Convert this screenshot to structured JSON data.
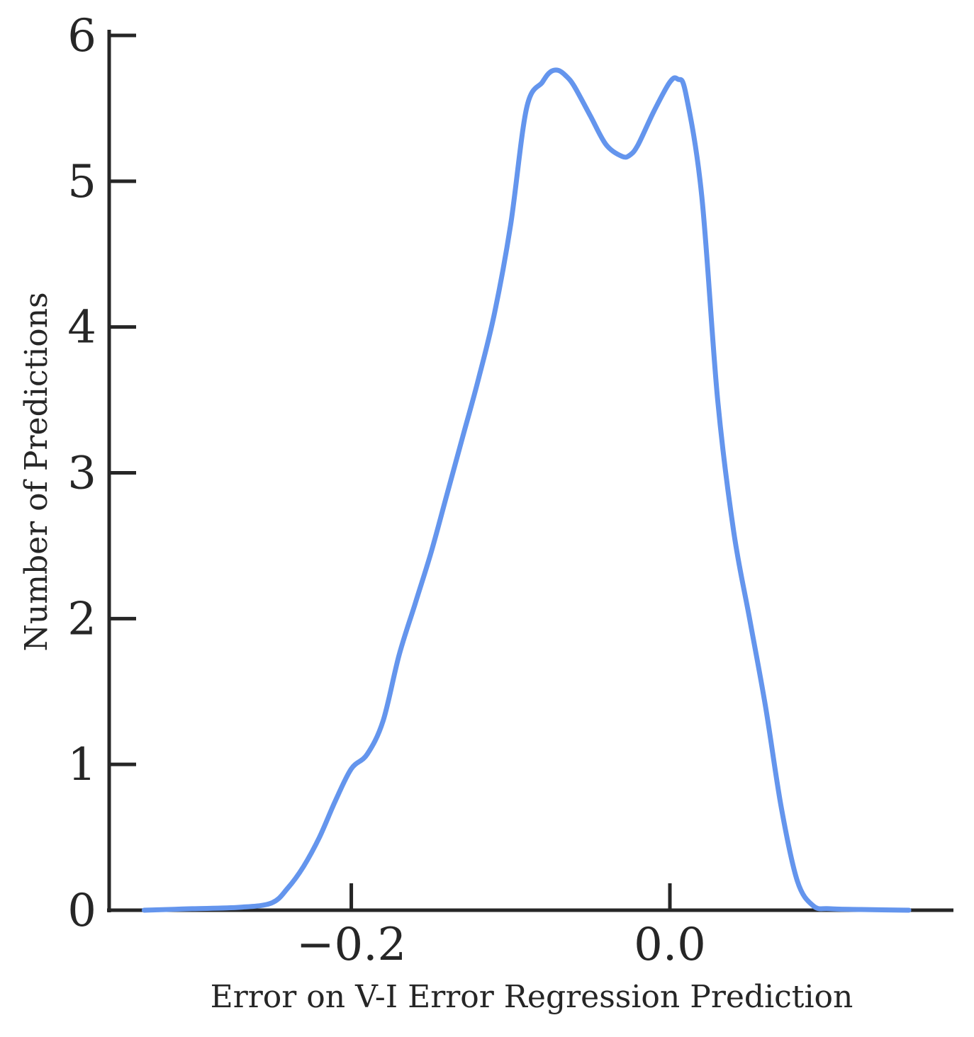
{
  "chart_data": {
    "type": "line",
    "title": "",
    "xlabel": "Error on V-I Error Regression Prediction",
    "ylabel": "Number of Predictions",
    "xlim": [
      -0.352,
      0.178
    ],
    "ylim": [
      0,
      6
    ],
    "xticks": [
      -0.2,
      0.0
    ],
    "xtick_labels": [
      "−0.2",
      "0.0"
    ],
    "yticks": [
      0,
      1,
      2,
      3,
      4,
      5,
      6
    ],
    "ytick_labels": [
      "0",
      "1",
      "2",
      "3",
      "4",
      "5",
      "6"
    ],
    "grid": false,
    "colors": {
      "series": "#6495ED",
      "axis": "#262626"
    },
    "series": [
      {
        "x": [
          -0.33,
          -0.3,
          -0.27,
          -0.25,
          -0.24,
          -0.23,
          -0.22,
          -0.21,
          -0.2,
          -0.19,
          -0.18,
          -0.17,
          -0.16,
          -0.15,
          -0.14,
          -0.13,
          -0.12,
          -0.11,
          -0.1,
          -0.09,
          -0.08,
          -0.075,
          -0.07,
          -0.065,
          -0.06,
          -0.05,
          -0.04,
          -0.03,
          -0.025,
          -0.02,
          -0.01,
          0.0,
          0.005,
          0.01,
          0.02,
          0.03,
          0.04,
          0.05,
          0.06,
          0.07,
          0.08,
          0.09,
          0.1,
          0.12,
          0.15
        ],
        "y": [
          0.0,
          0.01,
          0.02,
          0.05,
          0.15,
          0.3,
          0.5,
          0.75,
          0.97,
          1.07,
          1.3,
          1.75,
          2.1,
          2.45,
          2.85,
          3.25,
          3.65,
          4.1,
          4.7,
          5.5,
          5.68,
          5.75,
          5.76,
          5.72,
          5.65,
          5.45,
          5.25,
          5.17,
          5.18,
          5.25,
          5.48,
          5.68,
          5.7,
          5.6,
          4.9,
          3.5,
          2.6,
          2.0,
          1.4,
          0.7,
          0.2,
          0.03,
          0.01,
          0.005,
          0.0
        ]
      }
    ]
  }
}
